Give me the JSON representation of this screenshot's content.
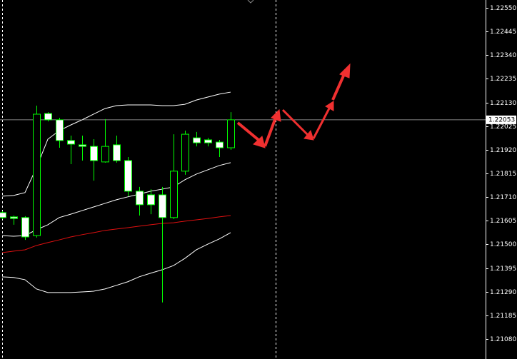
{
  "chart_data": {
    "type": "candlestick",
    "ylim": [
      1.20991,
      1.22585
    ],
    "yticks": [
      {
        "value": 1.2255,
        "label": "1.22550"
      },
      {
        "value": 1.22445,
        "label": "1.22445"
      },
      {
        "value": 1.2234,
        "label": "1.22340"
      },
      {
        "value": 1.22235,
        "label": "1.22235"
      },
      {
        "value": 1.2213,
        "label": "1.22130"
      },
      {
        "value": 1.22025,
        "label": "1.22025"
      },
      {
        "value": 1.2192,
        "label": "1.21920"
      },
      {
        "value": 1.21815,
        "label": "1.21815"
      },
      {
        "value": 1.2171,
        "label": "1.21710"
      },
      {
        "value": 1.21605,
        "label": "1.21605"
      },
      {
        "value": 1.215,
        "label": "1.21500"
      },
      {
        "value": 1.21395,
        "label": "1.21395"
      },
      {
        "value": 1.2129,
        "label": "1.21290"
      },
      {
        "value": 1.21185,
        "label": "1.21185"
      },
      {
        "value": 1.2108,
        "label": "1.21080"
      }
    ],
    "current_price": {
      "value": 1.22053,
      "label": "1.22053"
    },
    "bull_color": "#000000",
    "bear_color": "#ffffff",
    "wick_color": "#00ff00",
    "open": [
      1.21641,
      1.21622,
      1.21619,
      1.21539,
      1.22081,
      1.22053,
      1.21961,
      1.21942,
      1.21935,
      1.21866,
      1.21942,
      1.21872,
      1.21736,
      1.2172,
      1.2172,
      1.21619,
      1.21825,
      1.21973,
      1.21964,
      1.21954,
      1.21929
    ],
    "high": [
      1.21647,
      1.21628,
      1.21625,
      1.22116,
      1.22087,
      1.22062,
      1.21983,
      1.21983,
      1.21967,
      1.22056,
      1.21983,
      1.21888,
      1.21755,
      1.21745,
      1.21755,
      1.21989,
      1.22005,
      1.21999,
      1.21973,
      1.21964,
      1.22087
    ],
    "low": [
      1.21612,
      1.21587,
      1.2152,
      1.2153,
      1.22046,
      1.21929,
      1.21856,
      1.21872,
      1.21783,
      1.21863,
      1.21863,
      1.21714,
      1.21628,
      1.21634,
      1.21242,
      1.21612,
      1.21809,
      1.21935,
      1.21935,
      1.21888,
      1.2192
    ],
    "close": [
      1.21619,
      1.21615,
      1.21533,
      1.22078,
      1.22053,
      1.21961,
      1.21945,
      1.21935,
      1.21872,
      1.21935,
      1.21872,
      1.21736,
      1.21676,
      1.21676,
      1.21619,
      1.21825,
      1.21989,
      1.21951,
      1.21951,
      1.21929,
      1.22053
    ],
    "series": [
      {
        "color": "#ffffff",
        "values": [
          1.21714,
          1.21717,
          1.2173,
          1.2184,
          1.21967,
          1.22005,
          1.2203,
          1.22053,
          1.22078,
          1.22103,
          1.22116,
          1.22119,
          1.22119,
          1.22119,
          1.22116,
          1.22116,
          1.22122,
          1.22141,
          1.22154,
          1.22167,
          1.22176
        ]
      },
      {
        "color": "#ffffff",
        "values": [
          1.21539,
          1.21536,
          1.21539,
          1.21565,
          1.21587,
          1.21619,
          1.21634,
          1.2165,
          1.21666,
          1.21682,
          1.21698,
          1.21711,
          1.21723,
          1.21736,
          1.21745,
          1.21755,
          1.21787,
          1.21812,
          1.21831,
          1.2185,
          1.21863
        ]
      },
      {
        "color": "#ffffff",
        "values": [
          1.21356,
          1.21353,
          1.21343,
          1.21302,
          1.21286,
          1.21286,
          1.21286,
          1.21289,
          1.21292,
          1.21302,
          1.21318,
          1.21334,
          1.21356,
          1.21372,
          1.21387,
          1.21406,
          1.21438,
          1.21476,
          1.21501,
          1.21524,
          1.21552
        ]
      },
      {
        "color": "#e01010",
        "values": [
          1.21463,
          1.2147,
          1.21476,
          1.21495,
          1.21508,
          1.2152,
          1.21533,
          1.21543,
          1.21552,
          1.21562,
          1.21568,
          1.21574,
          1.21581,
          1.21587,
          1.21593,
          1.21596,
          1.21603,
          1.21609,
          1.21615,
          1.21622,
          1.21628
        ]
      }
    ]
  }
}
